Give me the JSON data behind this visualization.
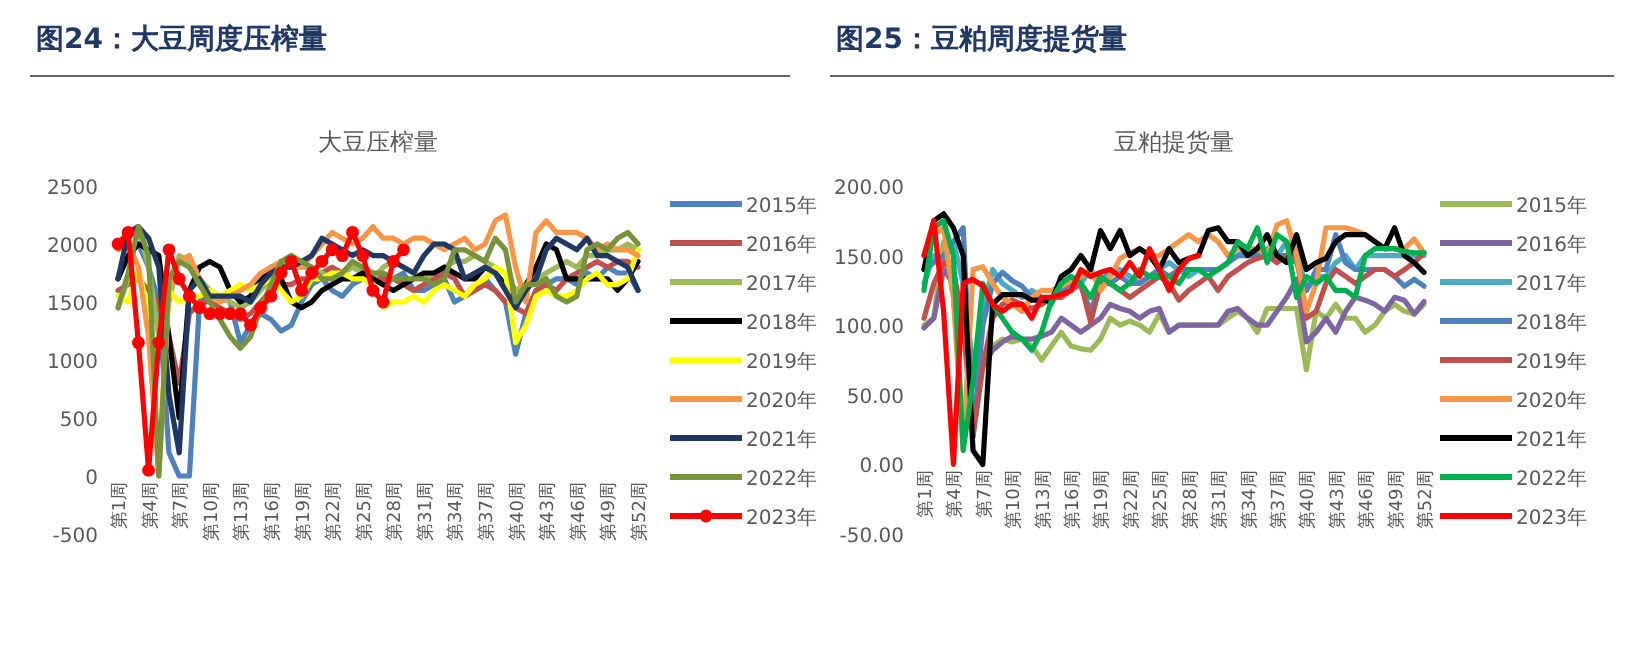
{
  "chart_data": [
    {
      "type": "line",
      "title": "图24：大豆周度压榨量",
      "subtitle": "大豆压榨量",
      "legend": "right",
      "grid": false,
      "categories": [
        "第1周",
        null,
        null,
        "第4周",
        null,
        null,
        "第7周",
        null,
        null,
        "第10周",
        null,
        null,
        "第13周",
        null,
        null,
        "第16周",
        null,
        null,
        "第19周",
        null,
        null,
        "第22周",
        null,
        null,
        "第25周",
        null,
        null,
        "第28周",
        null,
        null,
        "第31周",
        null,
        null,
        "第34周",
        null,
        null,
        "第37周",
        null,
        null,
        "第40周",
        null,
        null,
        "第43周",
        null,
        null,
        "第46周",
        null,
        null,
        "第49周",
        null,
        null,
        "第52周"
      ],
      "ylim": [
        -500,
        2500
      ],
      "yticks": [
        -500,
        0,
        500,
        1000,
        1500,
        2000,
        2500
      ],
      "series": [
        {
          "name": "2015年",
          "color": "#4f81bd",
          "values": [
            1700,
            1900,
            2000,
            1800,
            1500,
            200,
            0,
            0,
            1500,
            1600,
            1550,
            1500,
            1150,
            1300,
            1400,
            1350,
            1250,
            1300,
            1500,
            1650,
            1700,
            1600,
            1550,
            1650,
            1700,
            1700,
            1650,
            1700,
            1750,
            1600,
            1600,
            1650,
            1700,
            1500,
            1550,
            1650,
            1700,
            1600,
            1500,
            1050,
            1400,
            1600,
            1650,
            1700,
            1700,
            1650,
            1750,
            1700,
            1800,
            1750,
            1750,
            1600
          ]
        },
        {
          "name": "2016年",
          "color": "#c0504d",
          "values": [
            1600,
            1650,
            1700,
            1600,
            1500,
            1200,
            800,
            1400,
            1500,
            1500,
            1450,
            1400,
            1350,
            1400,
            1500,
            1600,
            1650,
            1650,
            1700,
            1700,
            1750,
            1800,
            1750,
            1700,
            1700,
            1750,
            1700,
            1700,
            1650,
            1600,
            1650,
            1700,
            1750,
            1700,
            1550,
            1600,
            1650,
            1600,
            1500,
            1450,
            1400,
            1600,
            1650,
            1600,
            1700,
            1750,
            1800,
            1850,
            1800,
            1850,
            1850,
            1800
          ]
        },
        {
          "name": "2017年",
          "color": "#9bbb59",
          "values": [
            1450,
            1700,
            2150,
            1800,
            1200,
            1500,
            1900,
            1850,
            1700,
            1600,
            1550,
            1500,
            1450,
            1500,
            1600,
            1700,
            1850,
            1900,
            1800,
            1800,
            1750,
            1700,
            1750,
            1800,
            1750,
            1700,
            1800,
            1850,
            1800,
            1750,
            1700,
            1750,
            1800,
            1850,
            1850,
            1900,
            1850,
            1800,
            1750,
            1600,
            1650,
            1700,
            1750,
            1800,
            1850,
            1800,
            1900,
            1900,
            1950,
            1950,
            2000,
            1950
          ]
        },
        {
          "name": "2018年",
          "color": "#000000",
          "values": [
            1700,
            1900,
            2000,
            1950,
            1900,
            1200,
            500,
            1600,
            1800,
            1850,
            1800,
            1600,
            1500,
            1550,
            1700,
            1800,
            1700,
            1500,
            1450,
            1500,
            1600,
            1650,
            1700,
            1700,
            1750,
            1700,
            1650,
            1600,
            1650,
            1700,
            1750,
            1750,
            1800,
            1750,
            1700,
            1700,
            1800,
            1750,
            1650,
            1500,
            1650,
            1800,
            2000,
            1950,
            1700,
            1700,
            1700,
            1700,
            1700,
            1600,
            1700,
            1850
          ]
        },
        {
          "name": "2019年",
          "color": "#ffff00",
          "values": [
            1550,
            1500,
            1800,
            1400,
            100,
            1600,
            1500,
            1550,
            1550,
            1600,
            1550,
            1600,
            1650,
            1600,
            1650,
            1700,
            1600,
            1500,
            1550,
            1700,
            1700,
            1750,
            1750,
            1700,
            1700,
            1650,
            1450,
            1500,
            1500,
            1550,
            1500,
            1600,
            1650,
            1600,
            1550,
            1650,
            1700,
            1800,
            1750,
            1150,
            1300,
            1550,
            1600,
            1550,
            1550,
            1600,
            1700,
            1750,
            1650,
            1650,
            1700,
            1950
          ]
        },
        {
          "name": "2020年",
          "color": "#f79646",
          "values": [
            1950,
            2000,
            1800,
            1200,
            0,
            1600,
            1850,
            1900,
            1700,
            1550,
            1500,
            1550,
            1600,
            1650,
            1750,
            1800,
            1850,
            1800,
            1800,
            1900,
            2000,
            2100,
            2050,
            2000,
            2050,
            2150,
            2050,
            2050,
            2000,
            2050,
            2050,
            2000,
            1950,
            2000,
            2050,
            1950,
            2000,
            2200,
            2250,
            1800,
            1500,
            2100,
            2200,
            2100,
            2100,
            2100,
            2050,
            1950,
            2000,
            1950,
            1950,
            1900
          ]
        },
        {
          "name": "2021年",
          "color": "#1f3864",
          "values": [
            1700,
            2100,
            2150,
            2050,
            1800,
            700,
            200,
            1600,
            1700,
            1550,
            1550,
            1550,
            1550,
            1500,
            1650,
            1750,
            1800,
            1800,
            1850,
            1900,
            2050,
            2000,
            1950,
            1900,
            1950,
            1900,
            1900,
            1850,
            1800,
            1750,
            1900,
            2000,
            2000,
            1950,
            1700,
            1750,
            1800,
            1750,
            1600,
            1450,
            1600,
            1700,
            1950,
            2050,
            2000,
            1950,
            2050,
            1900,
            1900,
            1850,
            1800,
            1600
          ]
        },
        {
          "name": "2022年",
          "color": "#77933c",
          "values": [
            1450,
            1750,
            2150,
            1900,
            0,
            1700,
            1850,
            1800,
            1650,
            1500,
            1350,
            1200,
            1100,
            1200,
            1450,
            1650,
            1850,
            1900,
            1850,
            1800,
            1700,
            1700,
            1750,
            1850,
            1800,
            1750,
            1750,
            1700,
            1700,
            1700,
            1700,
            1650,
            1700,
            1950,
            1950,
            1900,
            1850,
            2050,
            1950,
            1500,
            1650,
            1650,
            1700,
            1550,
            1500,
            1550,
            1950,
            2000,
            1950,
            2050,
            2100,
            2000
          ]
        },
        {
          "name": "2023年",
          "color": "#ff0000",
          "marker": "circle",
          "values": [
            2000,
            2100,
            1150,
            50,
            1150,
            1950,
            1700,
            1550,
            1450,
            1400,
            1400,
            1400,
            1400,
            1300,
            1450,
            1550,
            1750,
            1850,
            1600,
            1750,
            1850,
            1950,
            1900,
            2100,
            1900,
            1600,
            1500,
            1850,
            1950,
            null,
            null,
            null,
            null,
            null,
            null,
            null,
            null,
            null,
            null,
            null,
            null,
            null,
            null,
            null,
            null,
            null,
            null,
            null,
            null,
            null,
            null,
            null
          ]
        }
      ]
    },
    {
      "type": "line",
      "title": "图25：豆粕周度提货量",
      "subtitle": "豆粕提货量",
      "legend": "right",
      "grid": false,
      "categories": [
        "第1周",
        null,
        null,
        "第4周",
        null,
        null,
        "第7周",
        null,
        null,
        "第10周",
        null,
        null,
        "第13周",
        null,
        null,
        "第16周",
        null,
        null,
        "第19周",
        null,
        null,
        "第22周",
        null,
        null,
        "第25周",
        null,
        null,
        "第28周",
        null,
        null,
        "第31周",
        null,
        null,
        "第34周",
        null,
        null,
        "第37周",
        null,
        null,
        "第40周",
        null,
        null,
        "第43周",
        null,
        null,
        "第46周",
        null,
        null,
        "第49周",
        null,
        null,
        "第52周"
      ],
      "ylim": [
        -50,
        200
      ],
      "yticks": [
        {
          "value": -50,
          "label": "-50.00"
        },
        {
          "value": 0,
          "label": "0.00"
        },
        {
          "value": 50,
          "label": "50.00"
        },
        {
          "value": 100,
          "label": "100.00"
        },
        {
          "value": 150,
          "label": "150.00"
        },
        {
          "value": 200,
          "label": "200.00"
        }
      ],
      "series": [
        {
          "name": "2015年",
          "color": "#9bbb59",
          "values": [
            100,
            105,
            160,
            120,
            20,
            60,
            80,
            85,
            90,
            88,
            90,
            85,
            75,
            85,
            95,
            85,
            83,
            82,
            90,
            105,
            100,
            103,
            100,
            95,
            108,
            95,
            100,
            100,
            100,
            100,
            100,
            105,
            110,
            105,
            95,
            112,
            112,
            112,
            112,
            68,
            110,
            105,
            115,
            105,
            105,
            95,
            100,
            110,
            115,
            110,
            108,
            115
          ]
        },
        {
          "name": "2016年",
          "color": "#8064a2",
          "values": [
            98,
            105,
            140,
            130,
            100,
            60,
            70,
            82,
            88,
            92,
            90,
            90,
            92,
            95,
            105,
            100,
            95,
            100,
            105,
            115,
            112,
            110,
            105,
            110,
            112,
            95,
            100,
            100,
            100,
            100,
            100,
            110,
            112,
            105,
            100,
            100,
            110,
            120,
            133,
            88,
            95,
            105,
            95,
            110,
            120,
            118,
            115,
            110,
            120,
            118,
            108,
            117
          ]
        },
        {
          "name": "2017年",
          "color": "#4bacc6",
          "values": [
            130,
            150,
            145,
            160,
            130,
            70,
            110,
            140,
            130,
            125,
            120,
            125,
            120,
            115,
            130,
            135,
            130,
            140,
            130,
            140,
            140,
            135,
            130,
            135,
            140,
            145,
            140,
            135,
            140,
            140,
            140,
            145,
            150,
            155,
            150,
            155,
            150,
            160,
            155,
            125,
            135,
            135,
            145,
            150,
            140,
            150,
            150,
            150,
            150,
            150,
            150,
            150
          ]
        },
        {
          "name": "2018年",
          "color": "#4f81bd",
          "values": [
            140,
            145,
            150,
            160,
            170,
            20,
            100,
            130,
            138,
            132,
            128,
            120,
            115,
            120,
            125,
            130,
            128,
            110,
            130,
            130,
            135,
            130,
            130,
            135,
            140,
            135,
            140,
            140,
            140,
            140,
            140,
            145,
            150,
            150,
            150,
            150,
            150,
            150,
            145,
            125,
            140,
            140,
            165,
            145,
            140,
            140,
            140,
            140,
            135,
            128,
            133,
            128
          ]
        },
        {
          "name": "2019年",
          "color": "#c0504d",
          "values": [
            105,
            130,
            145,
            140,
            100,
            20,
            70,
            105,
            115,
            118,
            115,
            112,
            115,
            120,
            120,
            125,
            130,
            102,
            130,
            130,
            125,
            120,
            125,
            130,
            135,
            130,
            118,
            125,
            130,
            135,
            125,
            135,
            140,
            145,
            148,
            150,
            145,
            150,
            150,
            105,
            110,
            130,
            140,
            135,
            130,
            135,
            140,
            140,
            135,
            140,
            145,
            152
          ]
        },
        {
          "name": "2020年",
          "color": "#f79646",
          "values": [
            150,
            165,
            170,
            120,
            10,
            140,
            142,
            130,
            120,
            115,
            110,
            120,
            125,
            125,
            128,
            132,
            135,
            140,
            125,
            135,
            148,
            152,
            155,
            150,
            150,
            155,
            160,
            165,
            160,
            165,
            160,
            150,
            155,
            155,
            155,
            150,
            172,
            175,
            150,
            110,
            130,
            170,
            170,
            170,
            168,
            165,
            160,
            155,
            155,
            155,
            162,
            152
          ]
        },
        {
          "name": "2021年",
          "color": "#000000",
          "values": [
            140,
            175,
            180,
            170,
            150,
            10,
            0,
            115,
            122,
            122,
            122,
            118,
            118,
            117,
            135,
            140,
            150,
            140,
            168,
            155,
            168,
            150,
            155,
            150,
            140,
            155,
            145,
            148,
            150,
            168,
            170,
            160,
            160,
            150,
            155,
            165,
            150,
            145,
            165,
            140,
            145,
            148,
            160,
            165,
            165,
            165,
            160,
            155,
            170,
            150,
            145,
            138
          ]
        },
        {
          "name": "2022年",
          "color": "#00b050",
          "values": [
            125,
            170,
            175,
            150,
            10,
            60,
            130,
            115,
            105,
            95,
            90,
            82,
            95,
            118,
            130,
            135,
            130,
            120,
            135,
            130,
            125,
            130,
            140,
            135,
            135,
            135,
            130,
            140,
            140,
            135,
            140,
            145,
            160,
            155,
            170,
            145,
            165,
            160,
            120,
            135,
            130,
            135,
            125,
            125,
            120,
            150,
            155,
            155,
            155,
            153,
            152,
            152
          ]
        },
        {
          "name": "2023年",
          "color": "#ff0000",
          "values": [
            150,
            175,
            110,
            0,
            130,
            133,
            128,
            115,
            110,
            115,
            115,
            105,
            120,
            120,
            122,
            125,
            140,
            135,
            138,
            140,
            135,
            145,
            135,
            155,
            140,
            125,
            140,
            148,
            150,
            null,
            null,
            null,
            null,
            null,
            null,
            null,
            null,
            null,
            null,
            null,
            null,
            null,
            null,
            null,
            null,
            null,
            null,
            null,
            null,
            null,
            null,
            null
          ]
        }
      ]
    }
  ]
}
